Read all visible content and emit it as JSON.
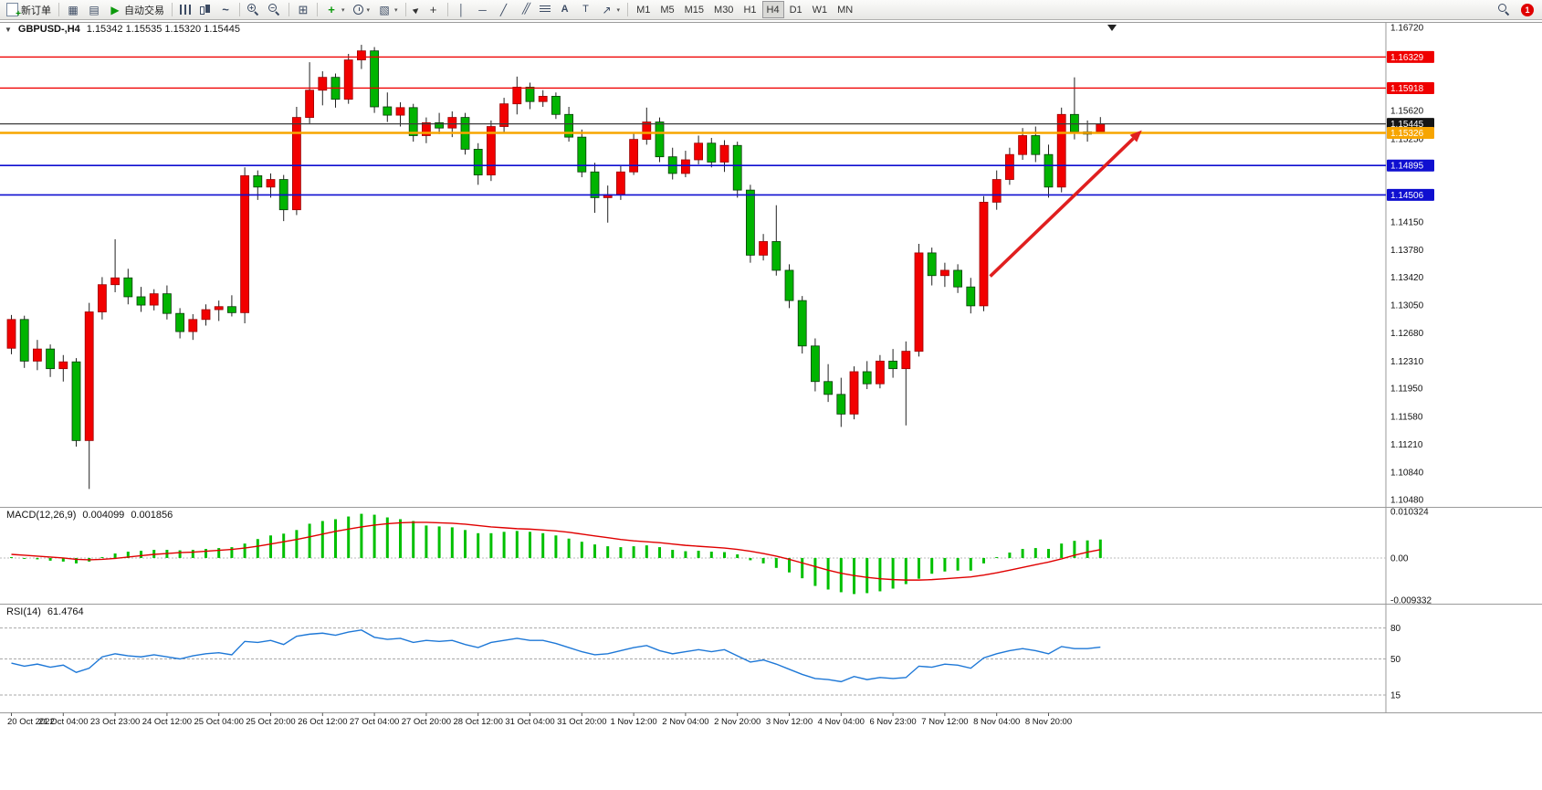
{
  "toolbar": {
    "notification_count": "1",
    "items": [
      {
        "name": "new-order",
        "icon": "new-order-icon",
        "label": "新订单"
      },
      {
        "type": "sep"
      },
      {
        "name": "chart-windows",
        "icon": "chart-window-icon"
      },
      {
        "name": "profiles",
        "icon": "profiles-icon"
      },
      {
        "name": "auto-trading",
        "icon": "autotrading-icon",
        "label": "自动交易"
      },
      {
        "type": "sep"
      },
      {
        "name": "bar-chart",
        "icon": "bars-icon"
      },
      {
        "name": "candle-chart",
        "icon": "candles-icon"
      },
      {
        "name": "line-chart",
        "icon": "line-chart-icon"
      },
      {
        "type": "sep"
      },
      {
        "name": "zoom-in",
        "icon": "zoom-in-icon"
      },
      {
        "name": "zoom-out",
        "icon": "zoom-out-icon"
      },
      {
        "type": "sep"
      },
      {
        "name": "tile-windows",
        "icon": "tile-windows-icon"
      },
      {
        "type": "sep"
      },
      {
        "name": "indicators",
        "icon": "indicators-icon",
        "dropdown": true
      },
      {
        "name": "periods",
        "icon": "periods-icon",
        "dropdown": true
      },
      {
        "name": "templates",
        "icon": "templates-icon",
        "dropdown": true
      },
      {
        "type": "sep"
      },
      {
        "name": "cursor",
        "icon": "cursor-icon"
      },
      {
        "name": "crosshair",
        "icon": "crosshair-icon"
      },
      {
        "type": "sep"
      },
      {
        "name": "vertical-line",
        "icon": "vline-icon"
      },
      {
        "name": "horizontal-line",
        "icon": "hline-icon"
      },
      {
        "name": "trendline",
        "icon": "trendline-icon"
      },
      {
        "name": "channel",
        "icon": "channel-icon"
      },
      {
        "name": "fibonacci",
        "icon": "fibo-icon"
      },
      {
        "name": "text",
        "icon": "text-icon"
      },
      {
        "name": "text-label",
        "icon": "label-icon"
      },
      {
        "name": "arrow-tools",
        "icon": "arrows-icon",
        "dropdown": true
      },
      {
        "type": "sep"
      },
      {
        "name": "tf-m1",
        "label": "M1",
        "tf": true
      },
      {
        "name": "tf-m5",
        "label": "M5",
        "tf": true
      },
      {
        "name": "tf-m15",
        "label": "M15",
        "tf": true
      },
      {
        "name": "tf-m30",
        "label": "M30",
        "tf": true
      },
      {
        "name": "tf-h1",
        "label": "H1",
        "tf": true
      },
      {
        "name": "tf-h4",
        "label": "H4",
        "tf": true,
        "active": true
      },
      {
        "name": "tf-d1",
        "label": "D1",
        "tf": true
      },
      {
        "name": "tf-w1",
        "label": "W1",
        "tf": true
      },
      {
        "name": "tf-mn",
        "label": "MN",
        "tf": true
      }
    ]
  },
  "icons": {
    "new-order-icon": "css",
    "chart-window-icon": "▦",
    "profiles-icon": "▤",
    "autotrading-icon": "▶",
    "bars-icon": "css",
    "candles-icon": "css",
    "line-chart-icon": "~",
    "zoom-in-icon": "css",
    "zoom-out-icon": "css",
    "tile-windows-icon": "⊞",
    "indicators-icon": "+",
    "periods-icon": "css",
    "templates-icon": "▧",
    "cursor-icon": "css",
    "crosshair-icon": "+",
    "vline-icon": "│",
    "hline-icon": "─",
    "trendline-icon": "╱",
    "channel-icon": "╱╱",
    "fibo-icon": "css",
    "text-icon": "A",
    "label-icon": "T",
    "arrows-icon": "↗",
    "search-icon": "css",
    "dropdown-caret-icon": "▾",
    "collapse-caret-icon": "▼"
  },
  "chart_data": {
    "type": "candlestick",
    "main": {
      "symbol_period": "GBPUSD-,H4",
      "ohlc_text": "1.15342 1.15535 1.15320 1.15445",
      "y_range": [
        1.1048,
        1.1672
      ],
      "axis_ticks": [
        "1.16720",
        "1.15620",
        "1.15250",
        "1.14150",
        "1.13780",
        "1.13420",
        "1.13050",
        "1.12680",
        "1.12310",
        "1.11950",
        "1.11580",
        "1.11210",
        "1.10840",
        "1.10480"
      ],
      "x_labels": [
        "20 Oct 2022",
        "21 Oct 04:00",
        "23 Oct 23:00",
        "24 Oct 12:00",
        "25 Oct 04:00",
        "25 Oct 20:00",
        "26 Oct 12:00",
        "27 Oct 04:00",
        "27 Oct 20:00",
        "28 Oct 12:00",
        "31 Oct 04:00",
        "31 Oct 20:00",
        "1 Nov 12:00",
        "2 Nov 04:00",
        "2 Nov 20:00",
        "3 Nov 12:00",
        "4 Nov 04:00",
        "6 Nov 23:00",
        "7 Nov 12:00",
        "8 Nov 04:00",
        "8 Nov 20:00"
      ],
      "label_every": 4,
      "up_color": "#f20000",
      "down_color": "#00b400",
      "candles": [
        [
          1.1248,
          1.1292,
          1.124,
          1.1286
        ],
        [
          1.1286,
          1.1291,
          1.1222,
          1.1231
        ],
        [
          1.1231,
          1.1259,
          1.1219,
          1.1247
        ],
        [
          1.1247,
          1.1253,
          1.121,
          1.1221
        ],
        [
          1.1221,
          1.1239,
          1.1204,
          1.123
        ],
        [
          1.123,
          1.1235,
          1.1118,
          1.1126
        ],
        [
          1.1126,
          1.1308,
          1.1062,
          1.1296
        ],
        [
          1.1296,
          1.1342,
          1.1286,
          1.1332
        ],
        [
          1.1332,
          1.1392,
          1.1322,
          1.1341
        ],
        [
          1.1341,
          1.1353,
          1.1306,
          1.1316
        ],
        [
          1.1316,
          1.1329,
          1.1296,
          1.1305
        ],
        [
          1.1305,
          1.1326,
          1.1298,
          1.132
        ],
        [
          1.132,
          1.1331,
          1.1286,
          1.1294
        ],
        [
          1.1294,
          1.1301,
          1.1261,
          1.127
        ],
        [
          1.127,
          1.1293,
          1.1259,
          1.1286
        ],
        [
          1.1286,
          1.1306,
          1.1278,
          1.1299
        ],
        [
          1.1299,
          1.1311,
          1.1284,
          1.1303
        ],
        [
          1.1303,
          1.1318,
          1.129,
          1.1295
        ],
        [
          1.1295,
          1.1487,
          1.1281,
          1.1476
        ],
        [
          1.1476,
          1.1483,
          1.1444,
          1.1461
        ],
        [
          1.1461,
          1.1479,
          1.1447,
          1.1471
        ],
        [
          1.1471,
          1.1477,
          1.1416,
          1.1431
        ],
        [
          1.1431,
          1.1567,
          1.1424,
          1.1553
        ],
        [
          1.1553,
          1.1626,
          1.1544,
          1.1589
        ],
        [
          1.1589,
          1.1614,
          1.1569,
          1.1606
        ],
        [
          1.1606,
          1.1611,
          1.1566,
          1.1577
        ],
        [
          1.1577,
          1.1637,
          1.1571,
          1.1629
        ],
        [
          1.1629,
          1.1649,
          1.1617,
          1.1641
        ],
        [
          1.1641,
          1.1646,
          1.1559,
          1.1567
        ],
        [
          1.1567,
          1.1586,
          1.1547,
          1.1556
        ],
        [
          1.1556,
          1.1573,
          1.1541,
          1.1566
        ],
        [
          1.1566,
          1.1571,
          1.1521,
          1.1529
        ],
        [
          1.1529,
          1.1553,
          1.1519,
          1.1546
        ],
        [
          1.1546,
          1.1559,
          1.1531,
          1.1539
        ],
        [
          1.1539,
          1.1561,
          1.1527,
          1.1553
        ],
        [
          1.1553,
          1.1559,
          1.1504,
          1.1511
        ],
        [
          1.1511,
          1.1519,
          1.1464,
          1.1477
        ],
        [
          1.1477,
          1.1549,
          1.1469,
          1.1541
        ],
        [
          1.1541,
          1.1579,
          1.1533,
          1.1571
        ],
        [
          1.1571,
          1.1607,
          1.1557,
          1.1593
        ],
        [
          1.1593,
          1.1599,
          1.1564,
          1.1574
        ],
        [
          1.1574,
          1.1589,
          1.1567,
          1.1581
        ],
        [
          1.1581,
          1.1586,
          1.1551,
          1.1557
        ],
        [
          1.1557,
          1.1567,
          1.1521,
          1.1527
        ],
        [
          1.1527,
          1.1537,
          1.1474,
          1.1481
        ],
        [
          1.1481,
          1.1493,
          1.1427,
          1.1447
        ],
        [
          1.1447,
          1.1463,
          1.1414,
          1.1451
        ],
        [
          1.1451,
          1.1489,
          1.1444,
          1.1481
        ],
        [
          1.1481,
          1.1533,
          1.1477,
          1.1524
        ],
        [
          1.1524,
          1.1566,
          1.1517,
          1.1547
        ],
        [
          1.1547,
          1.1553,
          1.1494,
          1.1501
        ],
        [
          1.1501,
          1.1513,
          1.1471,
          1.1479
        ],
        [
          1.1479,
          1.1509,
          1.1474,
          1.1497
        ],
        [
          1.1497,
          1.1529,
          1.1491,
          1.1519
        ],
        [
          1.1519,
          1.1526,
          1.1487,
          1.1494
        ],
        [
          1.1494,
          1.1523,
          1.1481,
          1.1516
        ],
        [
          1.1516,
          1.1521,
          1.1447,
          1.1457
        ],
        [
          1.1457,
          1.1464,
          1.1361,
          1.1371
        ],
        [
          1.1371,
          1.1399,
          1.1364,
          1.1389
        ],
        [
          1.1389,
          1.1437,
          1.1344,
          1.1351
        ],
        [
          1.1351,
          1.1359,
          1.1301,
          1.1311
        ],
        [
          1.1311,
          1.1317,
          1.1241,
          1.1251
        ],
        [
          1.1251,
          1.1261,
          1.1191,
          1.1204
        ],
        [
          1.1204,
          1.1227,
          1.1177,
          1.1187
        ],
        [
          1.1187,
          1.1209,
          1.1144,
          1.1161
        ],
        [
          1.1161,
          1.1224,
          1.1154,
          1.1217
        ],
        [
          1.1217,
          1.1231,
          1.1194,
          1.1201
        ],
        [
          1.1201,
          1.1239,
          1.1195,
          1.1231
        ],
        [
          1.1231,
          1.1247,
          1.1209,
          1.1221
        ],
        [
          1.1221,
          1.1257,
          1.1146,
          1.1244
        ],
        [
          1.1244,
          1.1386,
          1.1237,
          1.1374
        ],
        [
          1.1374,
          1.1381,
          1.1331,
          1.1344
        ],
        [
          1.1344,
          1.1361,
          1.1329,
          1.1351
        ],
        [
          1.1351,
          1.1359,
          1.1321,
          1.1329
        ],
        [
          1.1329,
          1.1341,
          1.1294,
          1.1304
        ],
        [
          1.1304,
          1.1449,
          1.1297,
          1.1441
        ],
        [
          1.1441,
          1.1483,
          1.1431,
          1.1471
        ],
        [
          1.1471,
          1.1513,
          1.1464,
          1.1504
        ],
        [
          1.1504,
          1.1539,
          1.1497,
          1.1529
        ],
        [
          1.1529,
          1.1541,
          1.1494,
          1.1504
        ],
        [
          1.1504,
          1.1517,
          1.1447,
          1.1461
        ],
        [
          1.1461,
          1.1566,
          1.1454,
          1.1557
        ],
        [
          1.1557,
          1.1606,
          1.1524,
          1.1534
        ],
        [
          1.1534,
          1.1549,
          1.1521,
          1.1531
        ],
        [
          1.15342,
          1.15535,
          1.1532,
          1.15445
        ]
      ],
      "hlines": [
        {
          "price": 1.16329,
          "label": "1.16329",
          "color": "#ef0000",
          "width": 1.4
        },
        {
          "price": 1.15918,
          "label": "1.15918",
          "color": "#ef0000",
          "width": 1.4
        },
        {
          "price": 1.15445,
          "label": "1.15445",
          "color": "#3c3c3c",
          "badge": "#151515",
          "width": 1.2
        },
        {
          "price": 1.15326,
          "label": "1.15326",
          "color": "#f7a500",
          "width": 2.6
        },
        {
          "price": 1.14895,
          "label": "1.14895",
          "color": "#0f0fd0",
          "width": 1.6
        },
        {
          "price": 1.14506,
          "label": "1.14506",
          "color": "#0f0fd0",
          "width": 1.6
        }
      ],
      "arrow": {
        "color": "#e01f1f",
        "from": {
          "index": 75.5,
          "price": 1.1343
        },
        "to": {
          "index": 87.2,
          "price": 1.1536
        }
      }
    },
    "macd": {
      "label": "MACD(12,26,9)",
      "value_main": "0.004099",
      "value_signal": "0.001856",
      "axis_labels": [
        "0.010324",
        "0.00",
        "-0.009332"
      ],
      "histogram_color": "#00c000",
      "signal_color": "#e00000",
      "histogram": [
        0.0002,
        -0.0001,
        -0.0003,
        -0.0006,
        -0.0008,
        -0.0012,
        -0.0008,
        0.0002,
        0.001,
        0.0014,
        0.0016,
        0.0018,
        0.0018,
        0.0017,
        0.0018,
        0.002,
        0.0022,
        0.0024,
        0.0032,
        0.0042,
        0.005,
        0.0054,
        0.0062,
        0.0076,
        0.0082,
        0.0086,
        0.0092,
        0.0098,
        0.0096,
        0.009,
        0.0086,
        0.0082,
        0.0072,
        0.007,
        0.0068,
        0.0062,
        0.0055,
        0.0055,
        0.0058,
        0.006,
        0.0058,
        0.0055,
        0.005,
        0.0043,
        0.0036,
        0.003,
        0.0026,
        0.0024,
        0.0026,
        0.0028,
        0.0024,
        0.0018,
        0.0015,
        0.0016,
        0.0014,
        0.0013,
        0.0008,
        -0.0005,
        -0.0012,
        -0.0022,
        -0.0032,
        -0.0045,
        -0.0062,
        -0.007,
        -0.0076,
        -0.008,
        -0.0078,
        -0.0074,
        -0.0068,
        -0.0058,
        -0.0046,
        -0.0035,
        -0.003,
        -0.0028,
        -0.0028,
        -0.0012,
        0.0002,
        0.0012,
        0.002,
        0.0022,
        0.002,
        0.0032,
        0.0038,
        0.0039,
        0.004099
      ],
      "signal": [
        0.0008,
        0.0006,
        0.0004,
        0.0002,
        0.0,
        -0.0003,
        -0.0004,
        -0.0003,
        -0.0001,
        0.0002,
        0.0005,
        0.0008,
        0.001,
        0.0012,
        0.0013,
        0.0015,
        0.0017,
        0.0019,
        0.0022,
        0.0026,
        0.0031,
        0.0036,
        0.0041,
        0.0047,
        0.0053,
        0.0059,
        0.0064,
        0.0069,
        0.0073,
        0.0076,
        0.0078,
        0.0079,
        0.0079,
        0.0078,
        0.0077,
        0.0075,
        0.0072,
        0.0069,
        0.0067,
        0.0065,
        0.0064,
        0.0062,
        0.006,
        0.0057,
        0.0053,
        0.0049,
        0.0045,
        0.0041,
        0.0038,
        0.0036,
        0.0034,
        0.0031,
        0.0028,
        0.0026,
        0.0024,
        0.0022,
        0.0019,
        0.0015,
        0.001,
        0.0004,
        -0.0003,
        -0.0011,
        -0.0019,
        -0.0027,
        -0.0034,
        -0.0039,
        -0.0043,
        -0.0046,
        -0.0048,
        -0.0049,
        -0.0049,
        -0.0048,
        -0.0046,
        -0.0044,
        -0.0042,
        -0.0038,
        -0.0033,
        -0.0027,
        -0.0021,
        -0.0015,
        -0.0009,
        -0.0002,
        0.0006,
        0.0013,
        0.001856
      ]
    },
    "rsi": {
      "label": "RSI(14)",
      "value": "61.4764",
      "range": [
        0,
        100
      ],
      "levels": [
        80,
        50,
        15
      ],
      "line_color": "#1e78d7",
      "values": [
        46,
        43,
        45,
        42,
        44,
        37,
        41,
        52,
        55,
        53,
        52,
        54,
        52,
        50,
        53,
        55,
        56,
        54,
        67,
        66,
        68,
        64,
        72,
        74,
        75,
        73,
        76,
        78,
        71,
        69,
        70,
        66,
        68,
        67,
        68,
        64,
        61,
        66,
        68,
        70,
        68,
        68,
        65,
        61,
        57,
        54,
        55,
        58,
        61,
        63,
        58,
        55,
        57,
        59,
        57,
        59,
        53,
        47,
        49,
        45,
        40,
        35,
        31,
        30,
        28,
        33,
        30,
        32,
        31,
        32,
        43,
        42,
        45,
        44,
        41,
        51,
        55,
        58,
        60,
        58,
        55,
        62,
        60,
        60,
        61.4764
      ]
    }
  }
}
